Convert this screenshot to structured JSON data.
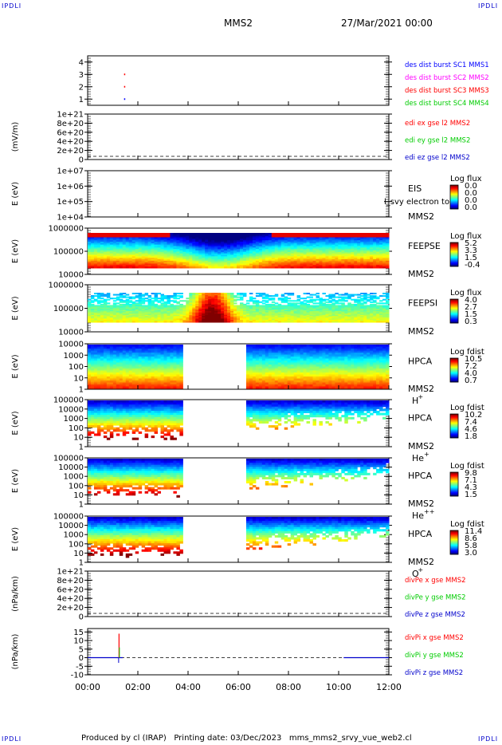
{
  "corner_labels": {
    "tl": "IPDLI",
    "tr": "IPDLI",
    "bl": "IPDLI",
    "br": "IPDLI"
  },
  "header": {
    "spacecraft": "MMS2",
    "datetime": "27/Mar/2021 00:00"
  },
  "footer": {
    "text": "Produced by cl (IRAP)   Printing date: 03/Dec/2023   mms_mms2_srvy_vue_web2.cl"
  },
  "x_axis": {
    "ticks": [
      "00:00",
      "02:00",
      "04:00",
      "06:00",
      "08:00",
      "10:00",
      "12:00"
    ],
    "range_hours": [
      0,
      12
    ]
  },
  "colors": {
    "mms1": "#0000ff",
    "mms2": "#ff00ff",
    "mms3": "#ff0000",
    "mms4": "#00cc00",
    "x": "#ff0000",
    "y": "#00cc00",
    "z": "#0000cc"
  },
  "chart_data": [
    {
      "type": "scatter",
      "id": "dist-burst",
      "ylim": [
        0.5,
        4.5
      ],
      "y_ticks": [
        "4",
        "3",
        "2",
        "1"
      ],
      "y_tick_values": [
        4,
        3,
        2,
        1
      ],
      "legend": [
        {
          "text": "des dist burst SC1 MMS1",
          "color": "#0000ff"
        },
        {
          "text": "des dist burst SC2 MMS2",
          "color": "#ff00ff"
        },
        {
          "text": "des dist burst SC3 MMS3",
          "color": "#ff0000"
        },
        {
          "text": "des dist burst SC4 MMS4",
          "color": "#00cc00"
        }
      ],
      "points": [
        {
          "x": 1.45,
          "y": 3,
          "color": "#ff0000"
        },
        {
          "x": 1.45,
          "y": 2,
          "color": "#ff0000"
        },
        {
          "x": 1.45,
          "y": 1,
          "color": "#0000ff"
        }
      ]
    },
    {
      "type": "line",
      "id": "edi",
      "ylabel": "(mV/m)",
      "y_ticks": [
        "1e+21",
        "8e+20",
        "6e+20",
        "4e+20",
        "2e+20",
        "0"
      ],
      "legend": [
        {
          "text": "edi ex gse l2 MMS2",
          "color": "#ff0000"
        },
        {
          "text": "edi ey gse l2 MMS2",
          "color": "#00cc00"
        },
        {
          "text": "edi ez gse l2 MMS2",
          "color": "#0000cc"
        }
      ]
    },
    {
      "type": "heatmap",
      "id": "eis",
      "ylabel": "E (eV)",
      "y_ticks": [
        "1e+07",
        "1e+06",
        "1e+05",
        "1e+04"
      ],
      "labels": [
        "EIS",
        "MMS2"
      ],
      "overlay_text": "l_svy electron to",
      "cbar_title": "Log flux",
      "cbar_ticks": [
        "0.0",
        "0.0",
        "0.0",
        "0.0"
      ]
    },
    {
      "type": "heatmap",
      "id": "feepse",
      "ylabel": "E (eV)",
      "y_ticks": [
        "1000000",
        "100000",
        "10000"
      ],
      "labels": [
        "FEEPSE",
        "MMS2"
      ],
      "cbar_title": "Log flux",
      "cbar_ticks": [
        "5.2",
        "3.3",
        "1.5",
        "-0.4"
      ]
    },
    {
      "type": "heatmap",
      "id": "feepsi",
      "ylabel": "E (eV)",
      "y_ticks": [
        "1000000",
        "100000",
        "10000"
      ],
      "labels": [
        "FEEPSI",
        "MMS2"
      ],
      "cbar_title": "Log flux",
      "cbar_ticks": [
        "4.0",
        "2.7",
        "1.5",
        "0.3"
      ]
    },
    {
      "type": "heatmap",
      "id": "hpca-h",
      "ylabel": "E (eV)",
      "y_ticks": [
        "10000",
        "1000",
        "100",
        "10",
        "1"
      ],
      "labels": [
        "HPCA",
        "MMS2"
      ],
      "species": "H",
      "species_sup": "+",
      "cbar_title": "Log fdist",
      "cbar_ticks": [
        "10.5",
        "7.2",
        "4.0",
        "0.7"
      ],
      "gap_hours": [
        3.85,
        6.25
      ]
    },
    {
      "type": "heatmap",
      "id": "hpca-he",
      "ylabel": "E (eV)",
      "y_ticks": [
        "100000",
        "10000",
        "1000",
        "100",
        "10",
        "1"
      ],
      "labels": [
        "HPCA",
        "MMS2"
      ],
      "species": "He",
      "species_sup": "+",
      "cbar_title": "Log fdist",
      "cbar_ticks": [
        "10.2",
        "7.4",
        "4.6",
        "1.8"
      ],
      "gap_hours": [
        3.85,
        6.25
      ]
    },
    {
      "type": "heatmap",
      "id": "hpca-hepp",
      "ylabel": "E (eV)",
      "y_ticks": [
        "100000",
        "10000",
        "1000",
        "100",
        "10",
        "1"
      ],
      "labels": [
        "HPCA",
        "MMS2"
      ],
      "species": "He",
      "species_sup": "++",
      "cbar_title": "Log fdist",
      "cbar_ticks": [
        "9.8",
        "7.1",
        "4.3",
        "1.5"
      ],
      "gap_hours": [
        3.85,
        6.25
      ]
    },
    {
      "type": "heatmap",
      "id": "hpca-o",
      "ylabel": "E (eV)",
      "y_ticks": [
        "100000",
        "10000",
        "1000",
        "100",
        "10",
        "1"
      ],
      "labels": [
        "HPCA",
        "MMS2"
      ],
      "species": "O",
      "species_sup": "+",
      "cbar_title": "Log fdist",
      "cbar_ticks": [
        "11.4",
        "8.6",
        "5.8",
        "3.0"
      ],
      "gap_hours": [
        3.85,
        6.25
      ]
    },
    {
      "type": "line",
      "id": "divpe",
      "ylabel": "(nPa/km)",
      "y_ticks": [
        "1e+21",
        "8e+20",
        "6e+20",
        "4e+20",
        "2e+20",
        "0"
      ],
      "legend": [
        {
          "text": "divPe x gse MMS2",
          "color": "#ff0000"
        },
        {
          "text": "divPe y gse MMS2",
          "color": "#00cc00"
        },
        {
          "text": "divPe z gse MMS2",
          "color": "#0000cc"
        }
      ]
    },
    {
      "type": "line",
      "id": "divpi",
      "ylabel": "(nPa/km)",
      "ylim": [
        -10,
        17
      ],
      "y_ticks": [
        "15",
        "10",
        "5",
        "0",
        "-5",
        "-10"
      ],
      "y_tick_values": [
        15,
        10,
        5,
        0,
        -5,
        -10
      ],
      "legend": [
        {
          "text": "divPi x gse MMS2",
          "color": "#ff0000"
        },
        {
          "text": "divPi y gse MMS2",
          "color": "#00cc00"
        },
        {
          "text": "divPi z gse MMS2",
          "color": "#0000cc"
        }
      ],
      "spikes": [
        {
          "x": 1.25,
          "x_max": 14,
          "y_max": 6,
          "z_min": -3
        }
      ],
      "data_end_hour": 1.4,
      "data_resume_hour": 10.2
    }
  ]
}
